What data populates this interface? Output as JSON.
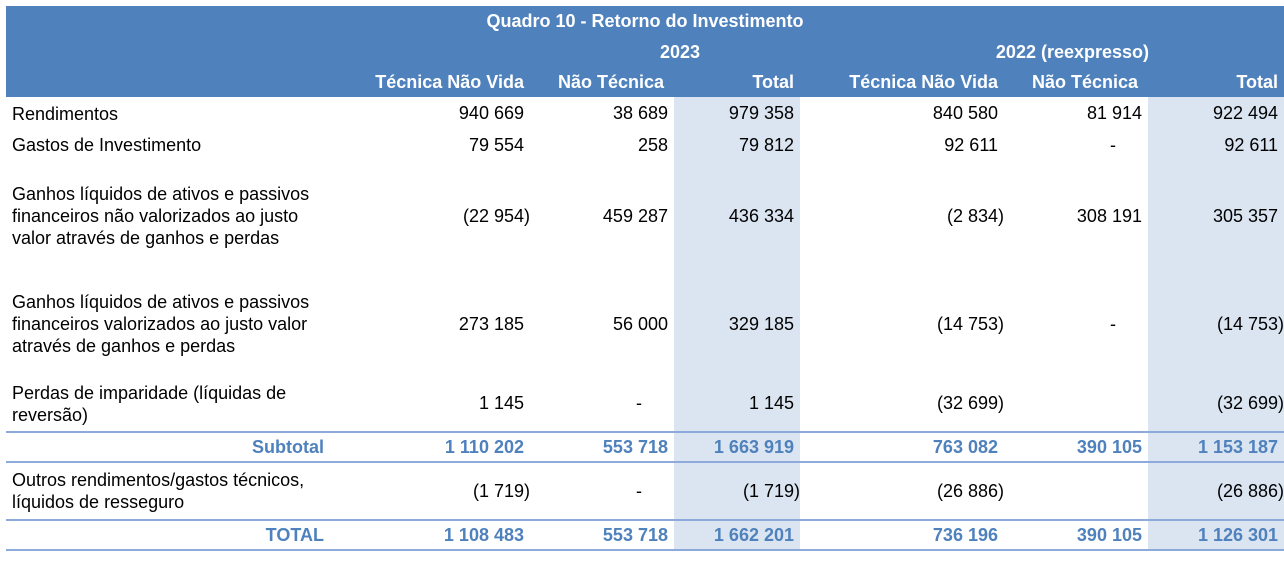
{
  "table": {
    "title": "Quadro 10 - Retorno do Investimento",
    "years": [
      "2023",
      "2022 (reexpresso)"
    ],
    "columns": [
      "Técnica Não Vida",
      "Não Técnica",
      "Total",
      "Técnica Não Vida",
      "Não Técnica",
      "Total"
    ],
    "rows": [
      {
        "label": "Rendimentos",
        "values": [
          "940 669",
          "38 689",
          "979 358",
          "840 580",
          "81 914",
          "922 494"
        ]
      },
      {
        "label": "Gastos de Investimento",
        "values": [
          "79 554",
          "258",
          "79 812",
          "92 611",
          "-",
          "92 611"
        ]
      },
      {
        "label": "Ganhos líquidos de ativos e passivos financeiros não valorizados ao justo valor através de ganhos e perdas",
        "values": [
          "(22 954)",
          "459 287",
          "436 334",
          "(2 834)",
          "308 191",
          "305 357"
        ]
      },
      {
        "label": "Ganhos líquidos de ativos e passivos financeiros valorizados ao justo valor através de ganhos e perdas",
        "values": [
          "273 185",
          "56 000",
          "329 185",
          "(14 753)",
          "-",
          "(14 753)"
        ]
      },
      {
        "label": "Perdas de imparidade (líquidas de reversão)",
        "values": [
          "1 145",
          "-",
          "1 145",
          "(32 699)",
          "",
          "(32 699)"
        ]
      }
    ],
    "subtotal": {
      "label": "Subtotal",
      "values": [
        "1 110 202",
        "553 718",
        "1 663 919",
        "763 082",
        "390 105",
        "1 153 187"
      ]
    },
    "other": {
      "label": "Outros rendimentos/gastos técnicos, líquidos de resseguro",
      "values": [
        "(1 719)",
        "-",
        "(1 719)",
        "(26 886)",
        "",
        "(26 886)"
      ]
    },
    "total": {
      "label": "TOTAL",
      "values": [
        "1 108 483",
        "553 718",
        "1 662 201",
        "736 196",
        "390 105",
        "1 126 301"
      ]
    }
  }
}
